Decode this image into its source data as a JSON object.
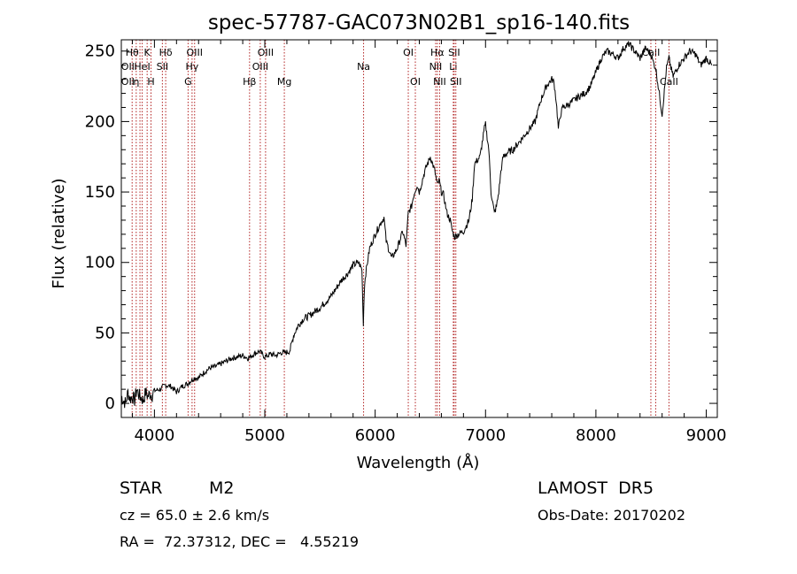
{
  "chart_data": {
    "type": "line",
    "title": "spec-57787-GAC073N02B1_sp16-140.fits",
    "xlabel": "Wavelength (Å)",
    "ylabel": "Flux (relative)",
    "xlim": [
      3700,
      9100
    ],
    "ylim": [
      -10,
      258
    ],
    "xticks": [
      4000,
      5000,
      6000,
      7000,
      8000,
      9000
    ],
    "yticks": [
      0,
      50,
      100,
      150,
      200,
      250
    ],
    "grid": false,
    "line_color": "#000000",
    "marker_color": "#b22222",
    "series": [
      {
        "x": [
          3700,
          3720,
          3740,
          3760,
          3780,
          3800,
          3820,
          3840,
          3860,
          3880,
          3900,
          3920,
          3940,
          3960,
          3980,
          4000,
          4050,
          4100,
          4150,
          4200,
          4250,
          4300,
          4330,
          4360,
          4400,
          4450,
          4500,
          4550,
          4600,
          4650,
          4700,
          4750,
          4800,
          4850,
          4900,
          4950,
          5000,
          5050,
          5100,
          5150,
          5200,
          5230,
          5260,
          5300,
          5350,
          5400,
          5450,
          5500,
          5550,
          5600,
          5650,
          5700,
          5750,
          5800,
          5850,
          5880,
          5893,
          5900,
          5910,
          5920,
          5950,
          6000,
          6050,
          6080,
          6100,
          6150,
          6200,
          6250,
          6280,
          6300,
          6330,
          6350,
          6380,
          6400,
          6450,
          6500,
          6540,
          6563,
          6580,
          6600,
          6620,
          6650,
          6680,
          6700,
          6720,
          6750,
          6800,
          6850,
          6880,
          6900,
          6950,
          6990,
          7000,
          7030,
          7050,
          7080,
          7100,
          7120,
          7140,
          7160,
          7200,
          7250,
          7300,
          7350,
          7400,
          7450,
          7500,
          7550,
          7600,
          7620,
          7640,
          7660,
          7680,
          7700,
          7750,
          7800,
          7850,
          7900,
          7950,
          8000,
          8050,
          8100,
          8150,
          8200,
          8250,
          8300,
          8350,
          8400,
          8450,
          8498,
          8520,
          8542,
          8560,
          8600,
          8640,
          8662,
          8680,
          8700,
          8750,
          8800,
          8850,
          8900,
          8950,
          9000,
          9050
        ],
        "y": [
          5,
          2,
          0,
          8,
          3,
          5,
          2,
          10,
          6,
          4,
          2,
          8,
          5,
          7,
          6,
          9,
          10,
          13,
          12,
          8,
          12,
          14,
          16,
          18,
          18,
          22,
          25,
          26,
          28,
          30,
          32,
          33,
          34,
          32,
          35,
          37,
          33,
          35,
          34,
          36,
          36,
          38,
          48,
          55,
          60,
          62,
          65,
          68,
          72,
          76,
          82,
          88,
          92,
          98,
          100,
          95,
          55,
          78,
          90,
          95,
          110,
          120,
          128,
          132,
          115,
          103,
          110,
          122,
          112,
          135,
          140,
          148,
          155,
          150,
          165,
          175,
          165,
          155,
          158,
          150,
          148,
          135,
          130,
          122,
          118,
          120,
          122,
          130,
          145,
          170,
          175,
          195,
          198,
          180,
          150,
          135,
          140,
          150,
          165,
          175,
          178,
          180,
          185,
          190,
          195,
          200,
          215,
          225,
          230,
          228,
          215,
          195,
          205,
          210,
          212,
          215,
          218,
          220,
          225,
          235,
          245,
          250,
          248,
          245,
          252,
          255,
          250,
          245,
          252,
          248,
          242,
          238,
          228,
          205,
          238,
          245,
          238,
          232,
          240,
          245,
          250,
          248,
          240,
          245,
          240
        ]
      }
    ],
    "line_markers": [
      {
        "x": 3798,
        "label": "Hθ",
        "row": 1
      },
      {
        "x": 3835,
        "label": "η",
        "row": 3
      },
      {
        "x": 3869,
        "label": "",
        "row": 0
      },
      {
        "x": 3889,
        "label": "HeI",
        "row": 2
      },
      {
        "x": 3934,
        "label": "K",
        "row": 1
      },
      {
        "x": 3969,
        "label": "H",
        "row": 3
      },
      {
        "x": 4072,
        "label": "SII",
        "row": 2
      },
      {
        "x": 4102,
        "label": "Hδ",
        "row": 1
      },
      {
        "x": 4305,
        "label": "G",
        "row": 3
      },
      {
        "x": 4341,
        "label": "Hγ",
        "row": 2
      },
      {
        "x": 4364,
        "label": "OIII",
        "row": 1
      },
      {
        "x": 4862,
        "label": "Hβ",
        "row": 3
      },
      {
        "x": 4959,
        "label": "OIII",
        "row": 2
      },
      {
        "x": 5007,
        "label": "OIII",
        "row": 1
      },
      {
        "x": 5177,
        "label": "Mg",
        "row": 3
      },
      {
        "x": 5895,
        "label": "Na",
        "row": 2
      },
      {
        "x": 6300,
        "label": "OI",
        "row": 1
      },
      {
        "x": 6364,
        "label": "OI",
        "row": 3
      },
      {
        "x": 6548,
        "label": "NII",
        "row": 2
      },
      {
        "x": 6563,
        "label": "Hα",
        "row": 1
      },
      {
        "x": 6584,
        "label": "NII",
        "row": 3
      },
      {
        "x": 6708,
        "label": "Li",
        "row": 2
      },
      {
        "x": 6716,
        "label": "SII",
        "row": 1
      },
      {
        "x": 6731,
        "label": "SII",
        "row": 3
      },
      {
        "x": 8498,
        "label": "CaII",
        "row": 1
      },
      {
        "x": 8542,
        "label": "",
        "row": 0
      },
      {
        "x": 8662,
        "label": "CaII",
        "row": 3
      }
    ],
    "extra_top_labels": [
      {
        "x": 3727,
        "label": "OII",
        "row": 2
      },
      {
        "x": 3727,
        "label": "OII",
        "row": 3
      }
    ]
  },
  "info": {
    "object_class": "STAR",
    "subclass": "M2",
    "survey": "LAMOST  DR5",
    "cz": "cz = 65.0 ± 2.6 km/s",
    "obs_date": "Obs-Date: 20170202",
    "coords": "RA =  72.37312, DEC =   4.55219"
  }
}
